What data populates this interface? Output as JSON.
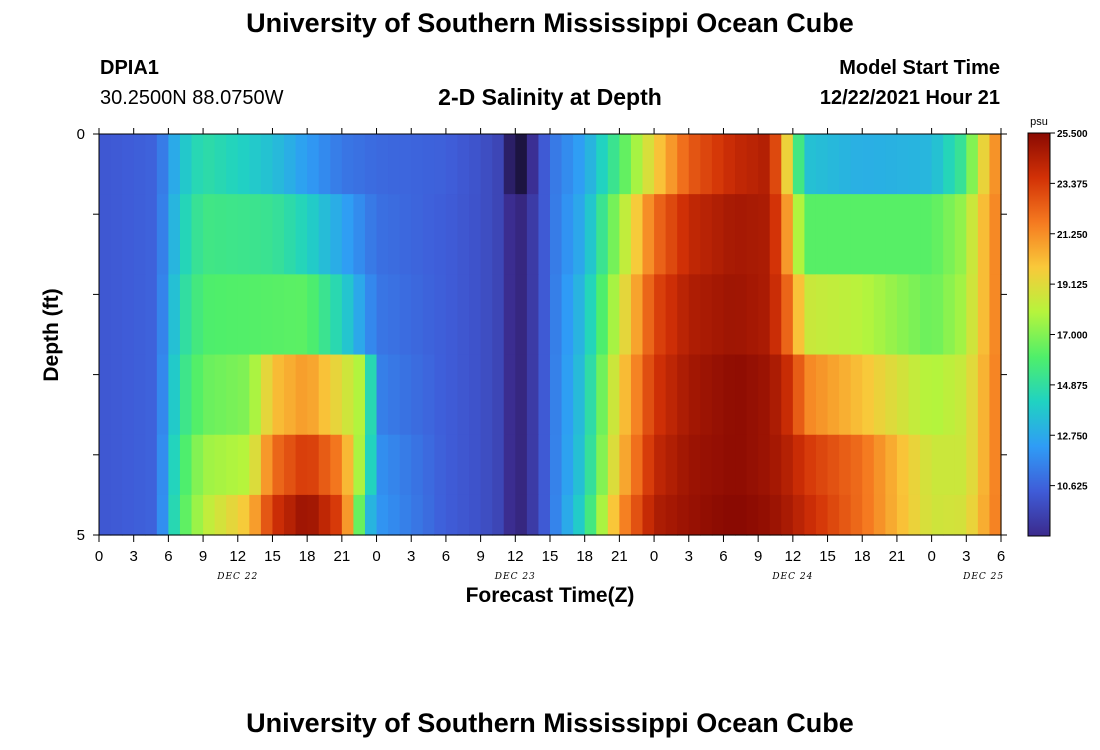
{
  "header": {
    "title": "University of Southern Mississippi Ocean Cube",
    "station": "DPIA1",
    "coords": "30.2500N  88.0750W",
    "subtitle": "2-D Salinity at Depth",
    "model_label": "Model Start Time",
    "model_time": "12/22/2021 Hour 21",
    "footer_title": "University of Southern Mississippi Ocean Cube"
  },
  "chart_data": {
    "type": "heatmap",
    "title": "2-D Salinity at Depth",
    "xlabel": "Forecast Time(Z)",
    "ylabel": "Depth (ft)",
    "x_tick_labels": [
      "0",
      "3",
      "6",
      "9",
      "12",
      "15",
      "18",
      "21",
      "0",
      "3",
      "6",
      "9",
      "12",
      "15",
      "18",
      "21",
      "0",
      "3",
      "6",
      "9",
      "12",
      "15",
      "18",
      "21",
      "0",
      "3",
      "6"
    ],
    "date_labels": [
      "DEC 22",
      "DEC 23",
      "DEC 24",
      "DEC 25"
    ],
    "y_tick_labels": [
      "0",
      "5"
    ],
    "depth_range_ft": [
      0,
      5
    ],
    "depth_layers_ft": [
      0.25,
      1.25,
      2.25,
      3.25,
      4.25,
      4.75
    ],
    "colorbar": {
      "unit": "psu",
      "ticks": [
        "25.500",
        "23.375",
        "21.250",
        "19.125",
        "17.000",
        "14.875",
        "12.750",
        "10.625"
      ],
      "min": 8.5,
      "max": 25.5,
      "colors": [
        "#3b2a8c",
        "#3f5cd8",
        "#2f9cf6",
        "#20d2c2",
        "#4fef6a",
        "#b6f43c",
        "#f9c93a",
        "#f57a20",
        "#d23106",
        "#8a0a02"
      ]
    },
    "series": [
      {
        "depth_ft": 0.25,
        "keyframes": [
          [
            0,
            10.2
          ],
          [
            5,
            10.6
          ],
          [
            7,
            13.5
          ],
          [
            9,
            14.8
          ],
          [
            12,
            14.2
          ],
          [
            15,
            13.5
          ],
          [
            18,
            12.3
          ],
          [
            21,
            11.2
          ],
          [
            24,
            10.8
          ],
          [
            30,
            10.5
          ],
          [
            33,
            10.0
          ],
          [
            35,
            9.4
          ],
          [
            36,
            6.0
          ],
          [
            38,
            9.6
          ],
          [
            39,
            11.0
          ],
          [
            42,
            12.6
          ],
          [
            45,
            15.8
          ],
          [
            48,
            19.5
          ],
          [
            51,
            22.5
          ],
          [
            55,
            24.0
          ],
          [
            58,
            24.5
          ],
          [
            59,
            21.5
          ],
          [
            60,
            17.5
          ],
          [
            61,
            13.6
          ],
          [
            66,
            12.9
          ],
          [
            72,
            13.2
          ],
          [
            75,
            15.5
          ],
          [
            76,
            18.5
          ],
          [
            78,
            22.0
          ]
        ]
      },
      {
        "depth_ft": 1.25,
        "keyframes": [
          [
            0,
            10.2
          ],
          [
            5,
            10.6
          ],
          [
            7,
            14.0
          ],
          [
            9,
            15.5
          ],
          [
            15,
            15.2
          ],
          [
            18,
            14.2
          ],
          [
            21,
            12.6
          ],
          [
            24,
            11.0
          ],
          [
            30,
            10.4
          ],
          [
            33,
            10.0
          ],
          [
            35,
            9.4
          ],
          [
            36,
            7.8
          ],
          [
            38,
            9.6
          ],
          [
            39,
            11.0
          ],
          [
            42,
            13.0
          ],
          [
            45,
            17.5
          ],
          [
            48,
            22.0
          ],
          [
            51,
            24.0
          ],
          [
            55,
            24.8
          ],
          [
            58,
            24.6
          ],
          [
            59,
            22.5
          ],
          [
            60,
            19.5
          ],
          [
            61,
            16.2
          ],
          [
            72,
            16.2
          ],
          [
            75,
            17.5
          ],
          [
            76,
            19.5
          ],
          [
            78,
            22.0
          ]
        ]
      },
      {
        "depth_ft": 2.25,
        "keyframes": [
          [
            0,
            10.2
          ],
          [
            5,
            10.6
          ],
          [
            7,
            14.5
          ],
          [
            9,
            16.0
          ],
          [
            15,
            16.2
          ],
          [
            18,
            16.3
          ],
          [
            21,
            14.2
          ],
          [
            24,
            11.2
          ],
          [
            30,
            10.4
          ],
          [
            33,
            10.0
          ],
          [
            35,
            9.4
          ],
          [
            36,
            7.8
          ],
          [
            38,
            9.6
          ],
          [
            39,
            11.0
          ],
          [
            42,
            13.5
          ],
          [
            45,
            18.5
          ],
          [
            48,
            23.0
          ],
          [
            51,
            24.5
          ],
          [
            55,
            25.0
          ],
          [
            58,
            24.6
          ],
          [
            60,
            21.5
          ],
          [
            61,
            18.5
          ],
          [
            66,
            18.0
          ],
          [
            72,
            16.5
          ],
          [
            75,
            17.8
          ],
          [
            76,
            19.5
          ],
          [
            78,
            22.0
          ]
        ]
      },
      {
        "depth_ft": 3.25,
        "keyframes": [
          [
            0,
            10.2
          ],
          [
            5,
            10.6
          ],
          [
            7,
            15.0
          ],
          [
            9,
            16.5
          ],
          [
            13,
            17.0
          ],
          [
            15,
            20.0
          ],
          [
            18,
            21.0
          ],
          [
            21,
            19.0
          ],
          [
            23,
            17.5
          ],
          [
            24,
            11.5
          ],
          [
            30,
            10.4
          ],
          [
            33,
            10.0
          ],
          [
            35,
            9.4
          ],
          [
            36,
            7.8
          ],
          [
            38,
            9.6
          ],
          [
            39,
            11.0
          ],
          [
            42,
            13.8
          ],
          [
            45,
            19.5
          ],
          [
            48,
            23.5
          ],
          [
            51,
            24.8
          ],
          [
            55,
            25.4
          ],
          [
            58,
            25.0
          ],
          [
            60,
            23.5
          ],
          [
            61,
            21.5
          ],
          [
            66,
            20.0
          ],
          [
            72,
            17.8
          ],
          [
            75,
            18.5
          ],
          [
            76,
            19.8
          ],
          [
            78,
            22.0
          ]
        ]
      },
      {
        "depth_ft": 4.25,
        "keyframes": [
          [
            0,
            10.2
          ],
          [
            5,
            10.6
          ],
          [
            7,
            15.5
          ],
          [
            9,
            17.5
          ],
          [
            13,
            18.0
          ],
          [
            15,
            22.0
          ],
          [
            18,
            23.5
          ],
          [
            21,
            21.5
          ],
          [
            23,
            16.5
          ],
          [
            24,
            12.0
          ],
          [
            30,
            10.4
          ],
          [
            33,
            10.0
          ],
          [
            35,
            9.4
          ],
          [
            36,
            7.8
          ],
          [
            38,
            9.6
          ],
          [
            39,
            11.0
          ],
          [
            42,
            14.0
          ],
          [
            45,
            20.0
          ],
          [
            48,
            24.0
          ],
          [
            51,
            25.0
          ],
          [
            55,
            25.4
          ],
          [
            58,
            25.0
          ],
          [
            60,
            24.2
          ],
          [
            61,
            23.5
          ],
          [
            66,
            22.0
          ],
          [
            72,
            18.5
          ],
          [
            75,
            18.5
          ],
          [
            76,
            19.8
          ],
          [
            78,
            22.0
          ]
        ]
      },
      {
        "depth_ft": 4.75,
        "keyframes": [
          [
            0,
            10.2
          ],
          [
            5,
            10.6
          ],
          [
            7,
            15.8
          ],
          [
            9,
            18.0
          ],
          [
            13,
            20.0
          ],
          [
            15,
            23.5
          ],
          [
            18,
            25.2
          ],
          [
            21,
            23.0
          ],
          [
            22,
            19.0
          ],
          [
            23,
            14.0
          ],
          [
            24,
            12.2
          ],
          [
            30,
            10.4
          ],
          [
            33,
            10.0
          ],
          [
            35,
            9.4
          ],
          [
            36,
            7.8
          ],
          [
            38,
            9.6
          ],
          [
            39,
            11.0
          ],
          [
            42,
            14.5
          ],
          [
            45,
            21.0
          ],
          [
            48,
            24.5
          ],
          [
            51,
            25.1
          ],
          [
            55,
            25.6
          ],
          [
            58,
            25.2
          ],
          [
            60,
            24.5
          ],
          [
            61,
            24.0
          ],
          [
            66,
            22.0
          ],
          [
            72,
            18.6
          ],
          [
            75,
            18.8
          ],
          [
            76,
            20.0
          ],
          [
            78,
            22.0
          ]
        ]
      }
    ]
  }
}
